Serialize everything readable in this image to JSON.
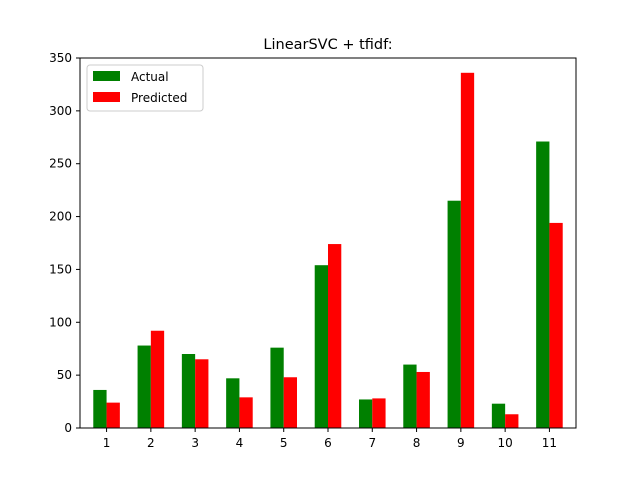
{
  "chart_data": {
    "type": "bar",
    "title": "LinearSVC + tfidf:",
    "xlabel": "",
    "ylabel": "",
    "categories": [
      "1",
      "2",
      "3",
      "4",
      "5",
      "6",
      "7",
      "8",
      "9",
      "10",
      "11"
    ],
    "series": [
      {
        "name": "Actual",
        "color": "#008000",
        "values": [
          36,
          78,
          70,
          47,
          76,
          154,
          27,
          60,
          215,
          23,
          271
        ]
      },
      {
        "name": "Predicted",
        "color": "#ff0000",
        "values": [
          24,
          92,
          65,
          29,
          48,
          174,
          28,
          53,
          336,
          13,
          194
        ]
      }
    ],
    "ylim": [
      0,
      350
    ],
    "yticks": [
      0,
      50,
      100,
      150,
      200,
      250,
      300,
      350
    ],
    "grid": false,
    "legend_position": "top-left"
  }
}
